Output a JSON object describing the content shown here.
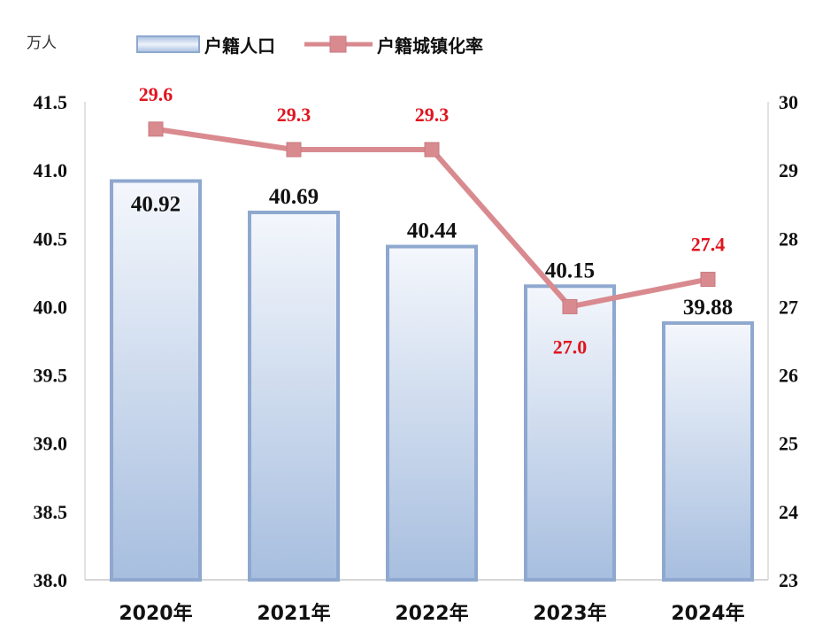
{
  "chart_data": {
    "type": "bar",
    "unit_left": "万人",
    "categories": [
      "2020年",
      "2021年",
      "2022年",
      "2023年",
      "2024年"
    ],
    "series": [
      {
        "name": "户籍人口",
        "type": "bar",
        "axis": "left",
        "values": [
          40.92,
          40.69,
          40.44,
          40.15,
          39.88
        ]
      },
      {
        "name": "户籍城镇化率",
        "type": "line",
        "axis": "right",
        "values": [
          29.6,
          29.3,
          29.3,
          27.0,
          27.4
        ]
      }
    ],
    "y_left": {
      "min": 38.0,
      "max": 41.5,
      "ticks": [
        "38.0",
        "38.5",
        "39.0",
        "39.5",
        "40.0",
        "40.5",
        "41.0",
        "41.5"
      ]
    },
    "y_right": {
      "min": 23,
      "max": 30,
      "ticks": [
        "23",
        "24",
        "25",
        "26",
        "27",
        "28",
        "29",
        "30"
      ]
    },
    "legend_position": "top",
    "colors": {
      "bar_edge": "#8ea8cf",
      "bar_fill_top": "#f4f7fc",
      "bar_fill_bottom": "#a7bedf",
      "line": "#d98a8f",
      "marker": "#d98a8f",
      "rate_label": "#e0141e"
    },
    "grid": false
  }
}
